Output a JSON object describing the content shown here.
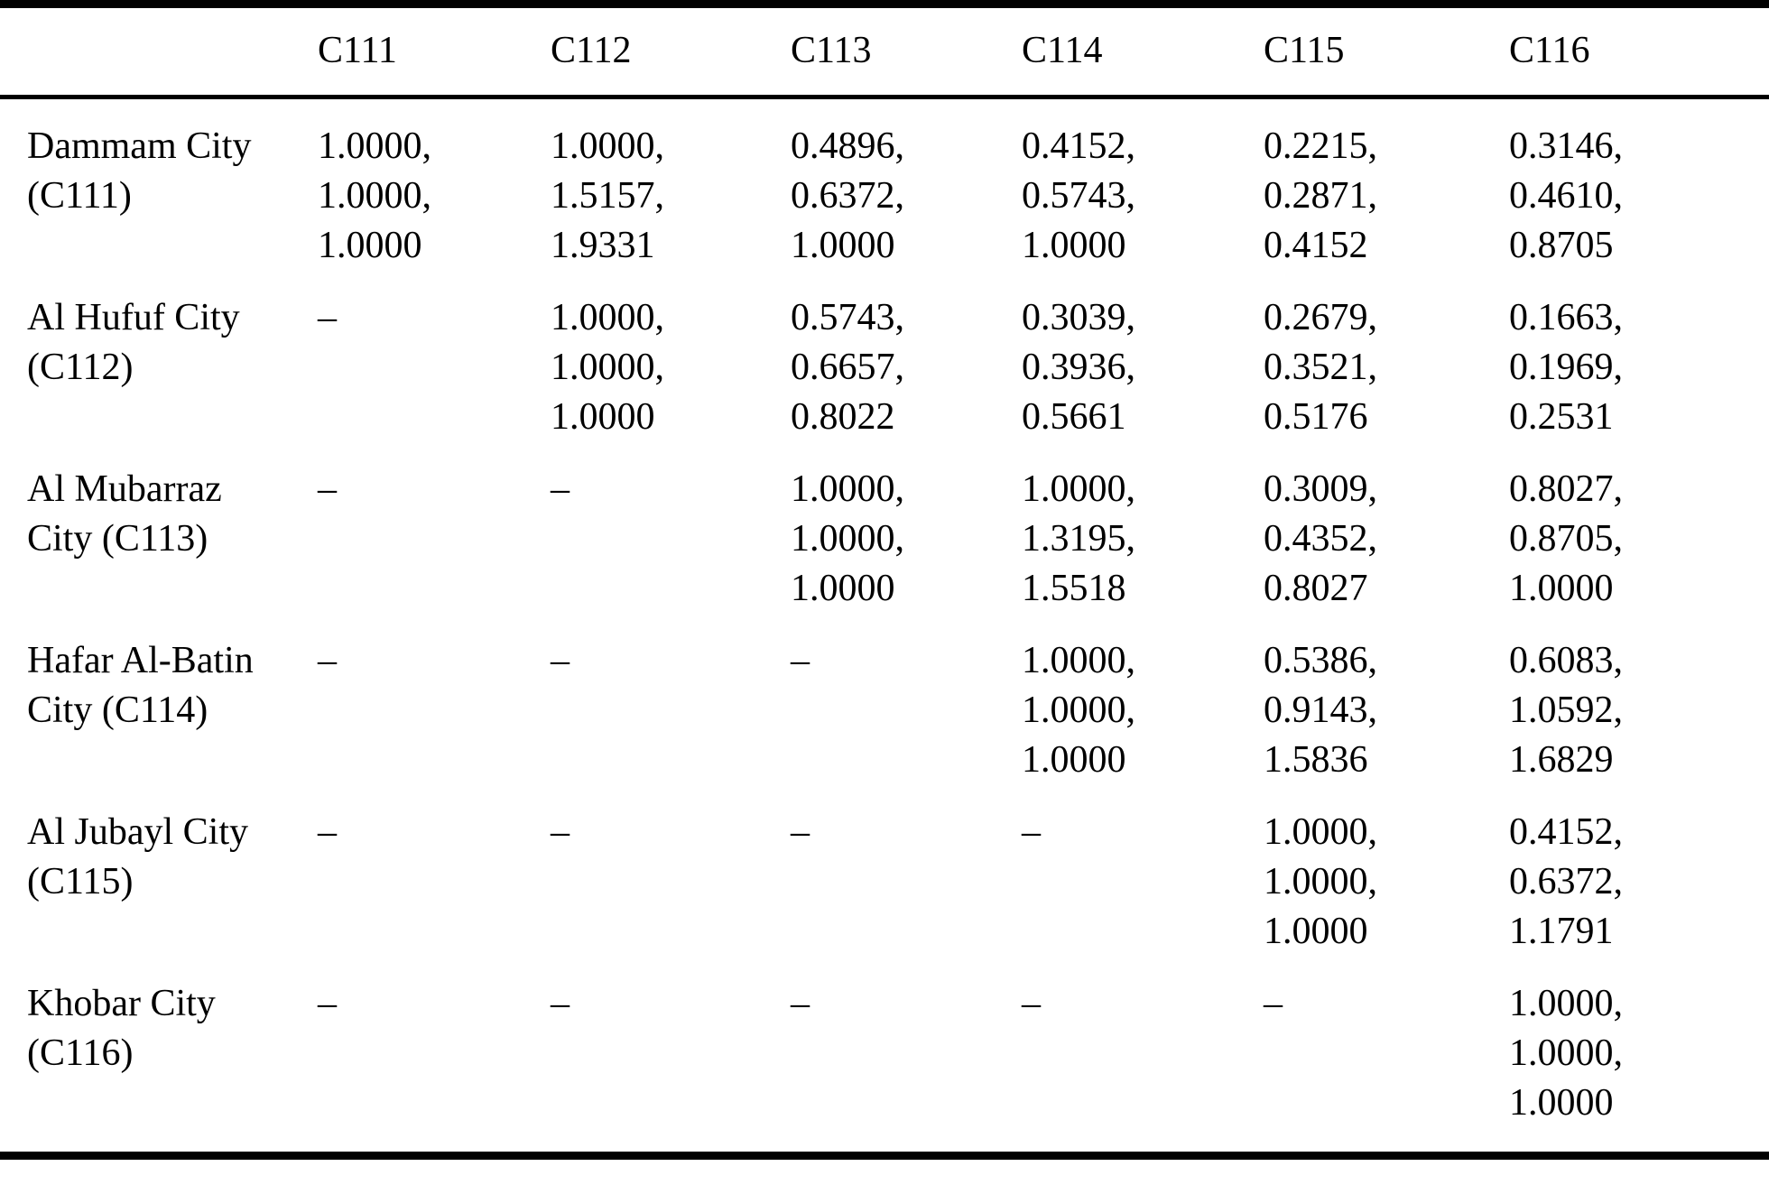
{
  "table": {
    "columns": [
      "",
      "C111",
      "C112",
      "C113",
      "C114",
      "C115",
      "C116"
    ],
    "rows": [
      {
        "label": "Dammam City (C111)",
        "cells": [
          "1.0000,\n1.0000,\n1.0000",
          "1.0000,\n1.5157,\n1.9331",
          "0.4896,\n0.6372,\n1.0000",
          "0.4152,\n0.5743,\n1.0000",
          "0.2215,\n0.2871,\n0.4152",
          "0.3146,\n0.4610,\n0.8705"
        ]
      },
      {
        "label": "Al Hufuf City (C112)",
        "cells": [
          "–",
          "1.0000,\n1.0000,\n1.0000",
          "0.5743,\n0.6657,\n0.8022",
          "0.3039,\n0.3936,\n0.5661",
          "0.2679,\n0.3521,\n0.5176",
          "0.1663,\n0.1969,\n0.2531"
        ]
      },
      {
        "label": "Al Mubarraz City (C113)",
        "cells": [
          "–",
          "–",
          "1.0000,\n1.0000,\n1.0000",
          "1.0000,\n1.3195,\n1.5518",
          "0.3009,\n0.4352,\n0.8027",
          "0.8027,\n0.8705,\n1.0000"
        ]
      },
      {
        "label": "Hafar Al-Batin City (C114)",
        "cells": [
          "–",
          "–",
          "–",
          "1.0000,\n1.0000,\n1.0000",
          "0.5386,\n0.9143,\n1.5836",
          "0.6083,\n1.0592,\n1.6829"
        ]
      },
      {
        "label": "Al Jubayl City (C115)",
        "cells": [
          "–",
          "–",
          "–",
          "–",
          "1.0000,\n1.0000,\n1.0000",
          "0.4152,\n0.6372,\n1.1791"
        ]
      },
      {
        "label": "Khobar City (C116)",
        "cells": [
          "–",
          "–",
          "–",
          "–",
          "–",
          "1.0000,\n1.0000,\n1.0000"
        ]
      }
    ]
  }
}
